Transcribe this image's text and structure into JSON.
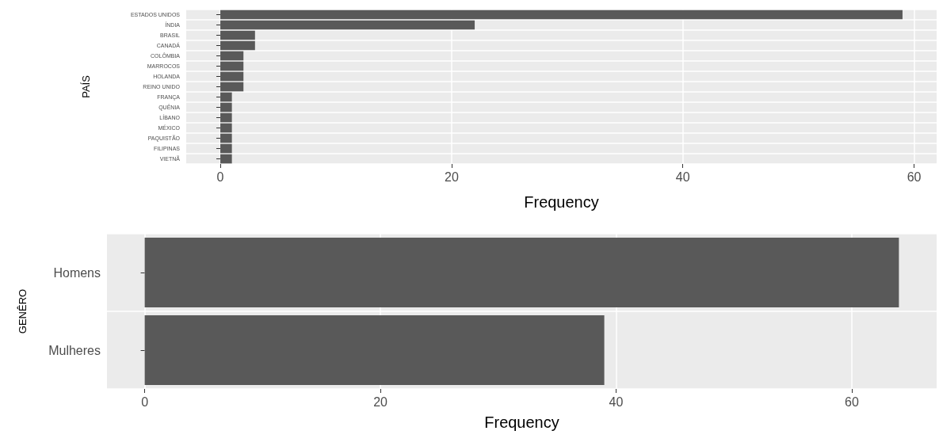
{
  "chart_data": [
    {
      "type": "bar",
      "orientation": "horizontal",
      "ylabel": "PAÍS",
      "xlabel": "Frequency",
      "categories": [
        "ESTADOS UNIDOS",
        "ÍNDIA",
        "BRASIL",
        "CANADÁ",
        "COLÔMBIA",
        "MARROCOS",
        "HOLANDA",
        "REINO UNIDO",
        "FRANÇA",
        "QUÊNIA",
        "LÍBANO",
        "MÉXICO",
        "PAQUISTÃO",
        "FILIPINAS",
        "VIETNÃ"
      ],
      "values": [
        59,
        22,
        3,
        3,
        2,
        2,
        2,
        2,
        1,
        1,
        1,
        1,
        1,
        1,
        1
      ],
      "color": "#595959",
      "xlim": [
        -2.95,
        61.95
      ],
      "xticks": [
        0,
        20,
        40,
        60
      ],
      "grid": true
    },
    {
      "type": "bar",
      "orientation": "horizontal",
      "ylabel": "GENÊRO",
      "xlabel": "Frequency",
      "categories": [
        "Homens",
        "Mulheres"
      ],
      "values": [
        64,
        39
      ],
      "color": "#595959",
      "xlim": [
        -3.2,
        67.2
      ],
      "xticks": [
        0,
        20,
        40,
        60
      ],
      "grid": true
    }
  ]
}
